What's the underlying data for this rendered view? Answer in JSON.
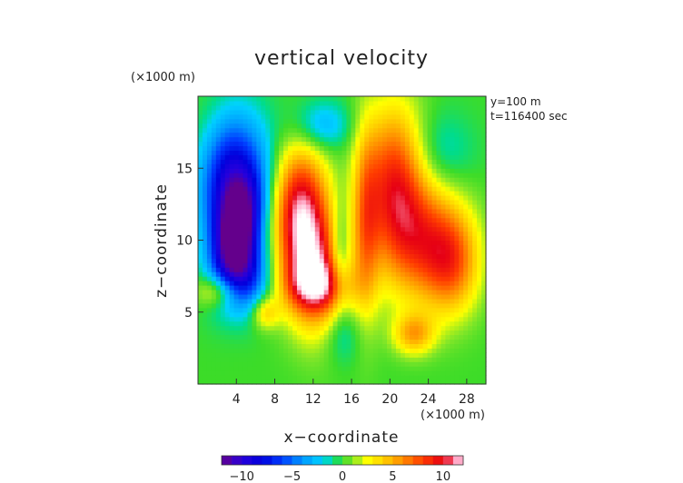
{
  "chart_data": {
    "type": "heatmap",
    "title": "vertical velocity",
    "xlabel": "x−coordinate",
    "ylabel": "z−coordinate",
    "x_unit": "(×1000 m)",
    "y_unit": "(×1000 m)",
    "annotations": [
      "y=100 m",
      "t=116400 sec"
    ],
    "xlim": [
      0,
      30
    ],
    "ylim": [
      0,
      20
    ],
    "x_ticks": [
      4,
      8,
      12,
      16,
      20,
      24,
      28
    ],
    "x_tick_labels": [
      "4",
      "8",
      "12",
      "16",
      "20",
      "24",
      "28"
    ],
    "y_ticks": [
      5,
      10,
      15
    ],
    "y_tick_labels": [
      "5",
      "10",
      "15"
    ],
    "colorbar": {
      "range": [
        -12,
        12
      ],
      "ticks": [
        -10,
        -5,
        0,
        5,
        10
      ],
      "tick_labels": [
        "−10",
        "−5",
        "0",
        "5",
        "10"
      ]
    },
    "features": [
      {
        "x": 4.0,
        "z": 10.5,
        "value": -12,
        "sx": 1.6,
        "sz": 2.6,
        "rot": -20
      },
      {
        "x": 3.0,
        "z": 14.5,
        "value": -7,
        "sx": 2.0,
        "sz": 3.0,
        "rot": -15
      },
      {
        "x": 5.0,
        "z": 7.5,
        "value": -6,
        "sx": 1.8,
        "sz": 1.8,
        "rot": 0
      },
      {
        "x": 6.5,
        "z": 14.0,
        "value": -3,
        "sx": 2.5,
        "sz": 3.0,
        "rot": 0
      },
      {
        "x": 11.5,
        "z": 9.0,
        "value": 12,
        "sx": 2.2,
        "sz": 3.4,
        "rot": 15
      },
      {
        "x": 10.5,
        "z": 13.5,
        "value": 6,
        "sx": 2.0,
        "sz": 2.5,
        "rot": 0
      },
      {
        "x": 12.5,
        "z": 6.8,
        "value": 5,
        "sx": 2.5,
        "sz": 1.2,
        "rot": 0
      },
      {
        "x": 14.8,
        "z": 9.0,
        "value": -3,
        "sx": 0.7,
        "sz": 2.5,
        "rot": 0
      },
      {
        "x": 17.5,
        "z": 11.0,
        "value": 5,
        "sx": 1.0,
        "sz": 4.5,
        "rot": 0
      },
      {
        "x": 20.5,
        "z": 14.5,
        "value": 8,
        "sx": 2.2,
        "sz": 3.5,
        "rot": 0
      },
      {
        "x": 23.0,
        "z": 10.0,
        "value": 7,
        "sx": 3.0,
        "sz": 3.0,
        "rot": 0
      },
      {
        "x": 26.5,
        "z": 8.5,
        "value": 6,
        "sx": 2.0,
        "sz": 2.5,
        "rot": 0
      },
      {
        "x": 22.5,
        "z": 3.5,
        "value": 5,
        "sx": 1.5,
        "sz": 1.0,
        "rot": 0
      },
      {
        "x": 13.0,
        "z": 18.0,
        "value": -3,
        "sx": 2.0,
        "sz": 1.2,
        "rot": 0
      },
      {
        "x": 25.0,
        "z": 16.0,
        "value": -2,
        "sx": 2.5,
        "sz": 2.0,
        "rot": 0
      },
      {
        "x": 15.0,
        "z": 3.5,
        "value": -2,
        "sx": 1.5,
        "sz": 1.5,
        "rot": 0
      },
      {
        "x": 2.0,
        "z": 6.5,
        "value": 4,
        "sx": 1.5,
        "sz": 0.8,
        "rot": 0
      },
      {
        "x": 7.0,
        "z": 5.0,
        "value": 4,
        "sx": 1.0,
        "sz": 0.8,
        "rot": 0
      }
    ]
  }
}
